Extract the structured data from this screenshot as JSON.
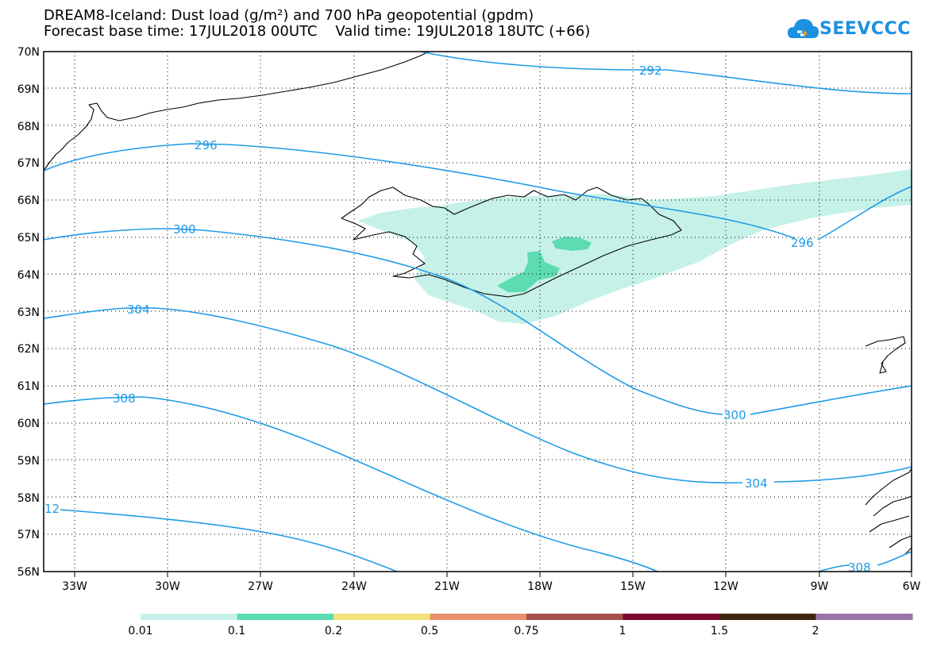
{
  "header": {
    "title_line1": "DREAM8-Iceland: Dust load (g/m²) and 700 hPa geopotential (gpdm)",
    "title_line2": "Forecast base time: 17JUL2018 00UTC    Valid time: 19JUL2018 18UTC (+66)"
  },
  "logo": {
    "text": "SEEVCCC",
    "icon": "cloud-logo-icon",
    "color": "#1e90e0"
  },
  "axes": {
    "lat_labels": [
      "70N",
      "69N",
      "68N",
      "67N",
      "66N",
      "65N",
      "64N",
      "63N",
      "62N",
      "61N",
      "60N",
      "59N",
      "58N",
      "57N",
      "56N"
    ],
    "lon_labels": [
      "33W",
      "30W",
      "27W",
      "24W",
      "21W",
      "18W",
      "15W",
      "12W",
      "9W",
      "6W"
    ],
    "grid": "dotted"
  },
  "contours": {
    "color": "#1e9be6",
    "labels": [
      "292",
      "296",
      "296",
      "300",
      "300",
      "304",
      "304",
      "308",
      "308",
      "12"
    ]
  },
  "dust": {
    "colors": {
      "light": "#c6f1e9",
      "medium": "#5cdcb0"
    }
  },
  "legend": {
    "colors": [
      "#c6f1e9",
      "#5cdcb0",
      "#f5e37a",
      "#e8906a",
      "#a8504a",
      "#7a0a32",
      "#3e2512",
      "#9a73a8"
    ],
    "labels": [
      "0.01",
      "0.1",
      "0.2",
      "0.5",
      "0.75",
      "1",
      "1.5",
      "2"
    ]
  }
}
